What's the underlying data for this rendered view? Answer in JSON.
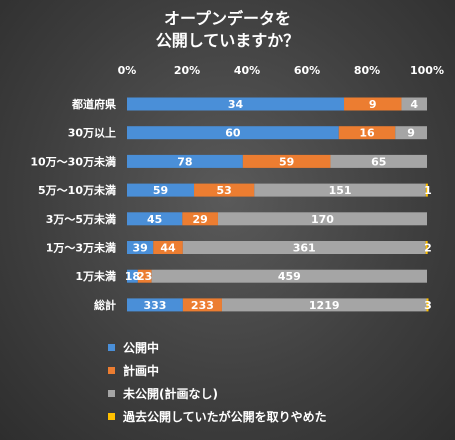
{
  "chart_data": {
    "type": "bar",
    "orientation": "horizontal",
    "stacked": "percent",
    "title_lines": [
      "オープンデータを",
      "公開していますか？"
    ],
    "x_ticks": [
      "0%",
      "20%",
      "40%",
      "60%",
      "80%",
      "100%"
    ],
    "xlim": [
      0,
      100
    ],
    "grid": false,
    "legend_position": "bottom-left",
    "categories": [
      "都道府県",
      "30万以上",
      "10万～30万未満",
      "5万～10万未満",
      "3万～5万未満",
      "1万～3万未満",
      "1万未満",
      "総計"
    ],
    "series": [
      {
        "name": "公開中",
        "color": "#4a8fd8",
        "values": [
          34,
          60,
          78,
          59,
          45,
          39,
          18,
          333
        ]
      },
      {
        "name": "計画中",
        "color": "#ec7d31",
        "values": [
          9,
          16,
          59,
          53,
          29,
          44,
          23,
          233
        ]
      },
      {
        "name": "未公開(計画なし)",
        "color": "#a5a5a5",
        "values": [
          4,
          9,
          65,
          151,
          170,
          361,
          459,
          1219
        ]
      },
      {
        "name": "過去公開していたが公開を取りやめた",
        "color": "#ffc000",
        "values": [
          0,
          0,
          0,
          1,
          0,
          2,
          0,
          3
        ]
      }
    ]
  }
}
